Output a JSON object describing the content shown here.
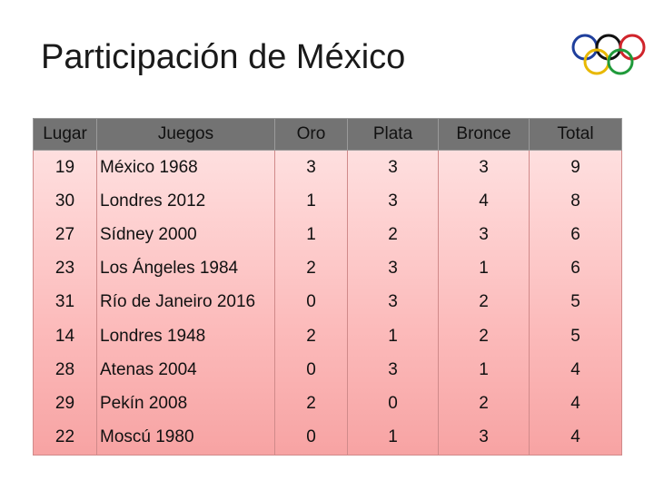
{
  "page": {
    "title": "Participación de México"
  },
  "table": {
    "headers": {
      "place": "Lugar",
      "games": "Juegos",
      "gold": "Oro",
      "silver": "Plata",
      "bronze": "Bronce",
      "total": "Total"
    },
    "rows": [
      {
        "place": "19",
        "games": "México 1968",
        "gold": "3",
        "silver": "3",
        "bronze": "3",
        "total": "9"
      },
      {
        "place": "30",
        "games": "Londres 2012",
        "gold": "1",
        "silver": "3",
        "bronze": "4",
        "total": "8"
      },
      {
        "place": "27",
        "games": "Sídney 2000",
        "gold": "1",
        "silver": "2",
        "bronze": "3",
        "total": "6"
      },
      {
        "place": "23",
        "games": "Los Ángeles 1984",
        "gold": "2",
        "silver": "3",
        "bronze": "1",
        "total": "6"
      },
      {
        "place": "31",
        "games": "Río de Janeiro 2016",
        "gold": "0",
        "silver": "3",
        "bronze": "2",
        "total": "5"
      },
      {
        "place": "14",
        "games": "Londres 1948",
        "gold": "2",
        "silver": "1",
        "bronze": "2",
        "total": "5"
      },
      {
        "place": "28",
        "games": "Atenas 2004",
        "gold": "0",
        "silver": "3",
        "bronze": "1",
        "total": "4"
      },
      {
        "place": "29",
        "games": "Pekín 2008",
        "gold": "2",
        "silver": "0",
        "bronze": "2",
        "total": "4"
      },
      {
        "place": "22",
        "games": "Moscú 1980",
        "gold": "0",
        "silver": "1",
        "bronze": "3",
        "total": "4"
      }
    ]
  },
  "logo": {
    "icon": "olympic-rings-icon",
    "ring_colors": [
      "#1f3f9c",
      "#111111",
      "#d0242b",
      "#e8b800",
      "#1f9a3a"
    ]
  }
}
